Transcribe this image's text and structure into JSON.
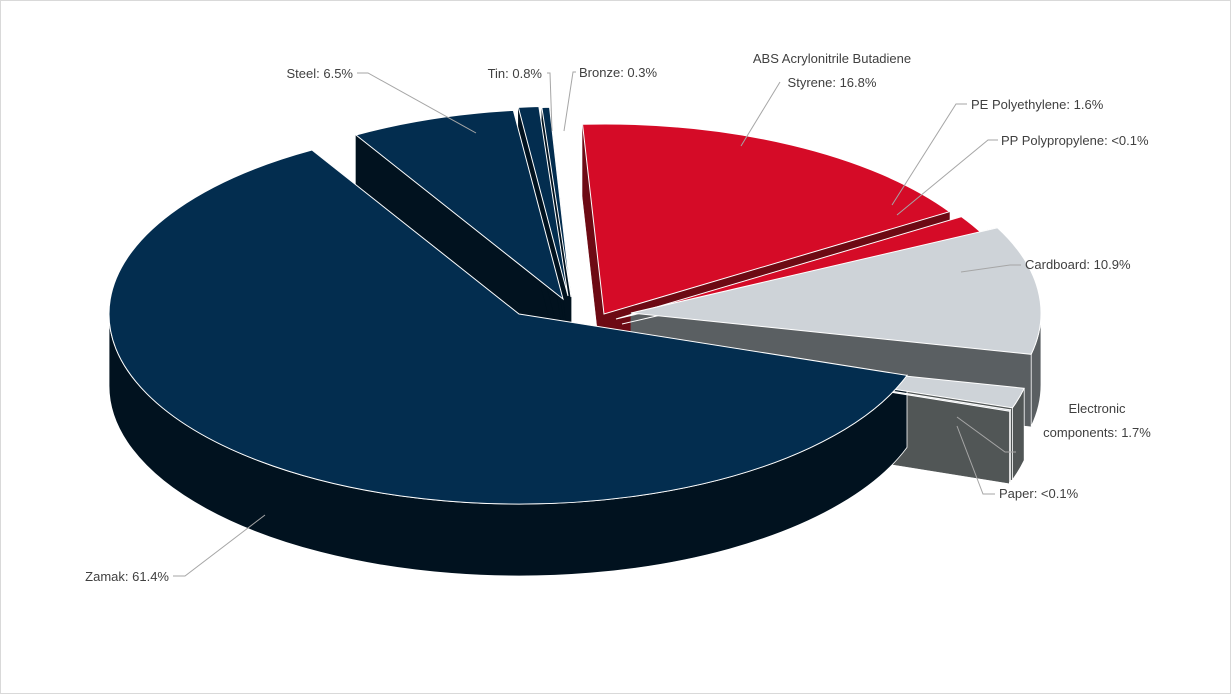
{
  "chart_data": {
    "type": "pie",
    "title": "",
    "legend": "none",
    "slices": [
      {
        "label": "ABS Acrylonitrile Butadiene Styrene",
        "value": 16.8,
        "display": "16.8%",
        "color": "#d50b27",
        "side": "#6d0a14"
      },
      {
        "label": "PE Polyethylene",
        "value": 1.6,
        "display": "1.6%",
        "color": "#d50b27",
        "side": "#6d0a14"
      },
      {
        "label": "PP Polypropylene",
        "value": 0.05,
        "display": "<0.1%",
        "color": "#d50b27",
        "side": "#6d0a14"
      },
      {
        "label": "Cardboard",
        "value": 10.9,
        "display": "10.9%",
        "color": "#ced3d8",
        "side": "#5a5f62"
      },
      {
        "label": "Electronic components",
        "value": 1.7,
        "display": "1.7%",
        "color": "#ced3d8",
        "side": "#515656"
      },
      {
        "label": "Paper",
        "value": 0.05,
        "display": "<0.1%",
        "color": "#ced3d8",
        "side": "#515656"
      },
      {
        "label": "Zamak",
        "value": 61.4,
        "display": "61.4%",
        "color": "#032d4f",
        "side": "#01121f"
      },
      {
        "label": "Steel",
        "value": 6.5,
        "display": "6.5%",
        "color": "#032d4f",
        "side": "#01121f"
      },
      {
        "label": "Tin",
        "value": 0.8,
        "display": "0.8%",
        "color": "#032d4f",
        "side": "#01121f"
      },
      {
        "label": "Bronze",
        "value": 0.3,
        "display": "0.3%",
        "color": "#032d4f",
        "side": "#01121f"
      }
    ]
  },
  "labels": {
    "abs_line1": "ABS Acrylonitrile Butadiene",
    "abs_line2": "Styrene: 16.8%",
    "pe": "PE Polyethylene: 1.6%",
    "pp": "PP Polypropylene: <0.1%",
    "cardboard": "Cardboard: 10.9%",
    "electronic_line1": "Electronic",
    "electronic_line2": "components: 1.7%",
    "paper": "Paper: <0.1%",
    "zamak": "Zamak: 61.4%",
    "steel": "Steel: 6.5%",
    "tin": "Tin: 0.8%",
    "bronze": "Bronze: 0.3%"
  }
}
